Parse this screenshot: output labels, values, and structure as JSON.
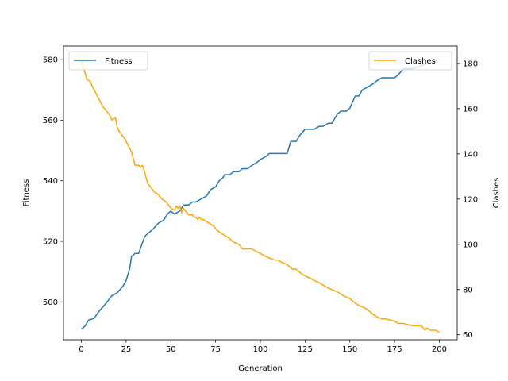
{
  "chart_data": {
    "type": "line",
    "xlabel": "Generation",
    "ylabel_left": "Fitness",
    "ylabel_right": "Clashes",
    "xlim": [
      -10,
      210
    ],
    "ylim_left": [
      487.5,
      584.5
    ],
    "ylim_right": [
      57.8,
      187.7
    ],
    "x_ticks": [
      0,
      25,
      50,
      75,
      100,
      125,
      150,
      175,
      200
    ],
    "y_left_ticks": [
      500,
      520,
      540,
      560,
      580
    ],
    "y_right_ticks": [
      60,
      80,
      100,
      120,
      140,
      160,
      180
    ],
    "grid": false,
    "legend_left_position": "upper left",
    "legend_right_position": "upper right",
    "series": [
      {
        "name": "Fitness",
        "axis": "left",
        "color": "#1f77b4",
        "x": [
          0,
          2,
          4,
          7,
          10,
          13,
          17,
          20,
          23,
          25,
          27,
          28,
          30,
          32,
          35,
          36,
          38,
          40,
          43,
          46,
          48,
          50,
          52,
          55,
          57,
          60,
          62,
          64,
          67,
          70,
          72,
          75,
          77,
          79,
          80,
          83,
          85,
          88,
          90,
          93,
          95,
          98,
          100,
          103,
          105,
          108,
          110,
          115,
          117,
          120,
          122,
          125,
          128,
          130,
          133,
          135,
          138,
          140,
          143,
          145,
          148,
          150,
          153,
          155,
          157,
          160,
          163,
          165,
          168,
          170,
          175,
          177,
          180,
          182,
          185,
          190,
          195,
          200
        ],
        "y": [
          491,
          492,
          494,
          494.5,
          497,
          499,
          502,
          503,
          505,
          507,
          511,
          515,
          516,
          516,
          521,
          522,
          523,
          524,
          526,
          527,
          529,
          530,
          529,
          530,
          532,
          532,
          533,
          533,
          534,
          535,
          537,
          538,
          540,
          541,
          542,
          542,
          543,
          543,
          544,
          544,
          545,
          546,
          547,
          548,
          549,
          549,
          549,
          549,
          553,
          553,
          555,
          557,
          557,
          557,
          558,
          558,
          559,
          559,
          562,
          563,
          563,
          564,
          568,
          568,
          570,
          571,
          572,
          573,
          574,
          574,
          574,
          575,
          577,
          577,
          577,
          578,
          579,
          580
        ]
      },
      {
        "name": "Clashes",
        "axis": "right",
        "color": "#ffa500",
        "x": [
          0,
          1,
          2,
          3,
          5,
          6,
          8,
          10,
          12,
          14,
          16,
          17,
          19,
          20,
          21,
          22,
          24,
          26,
          28,
          30,
          32,
          33,
          34,
          35,
          37,
          39,
          41,
          43,
          45,
          47,
          48,
          50,
          52,
          53,
          54,
          55,
          56,
          57,
          58,
          60,
          62,
          63,
          64,
          65,
          66,
          67,
          68,
          70,
          72,
          74,
          75,
          76,
          78,
          80,
          82,
          85,
          88,
          90,
          93,
          95,
          100,
          102,
          105,
          108,
          110,
          112,
          115,
          118,
          120,
          123,
          125,
          128,
          130,
          133,
          135,
          137,
          140,
          143,
          145,
          147,
          150,
          153,
          155,
          158,
          160,
          163,
          165,
          168,
          170,
          175,
          177,
          180,
          185,
          190,
          192,
          193,
          195,
          198,
          200
        ],
        "y": [
          181,
          178,
          176,
          173,
          172,
          170,
          167,
          164,
          161,
          159,
          157,
          155,
          156,
          152,
          150,
          149,
          147,
          144,
          141,
          135,
          135,
          134,
          135,
          133,
          127,
          125,
          123,
          122,
          120,
          119,
          118,
          116,
          115,
          117,
          116,
          117,
          114,
          116,
          115,
          113,
          113,
          112,
          112,
          111,
          112,
          111,
          111,
          110,
          109,
          108,
          107,
          106,
          105,
          104,
          103,
          101,
          100,
          98,
          98,
          98,
          96,
          95,
          94,
          93,
          93,
          92,
          91,
          89,
          89,
          87,
          86,
          85,
          84,
          83,
          82,
          81,
          80,
          79,
          78,
          77,
          76,
          74,
          73,
          72,
          71,
          69,
          68,
          67,
          67,
          66,
          65,
          65,
          64,
          64,
          62,
          63,
          62,
          62,
          61
        ]
      }
    ]
  }
}
